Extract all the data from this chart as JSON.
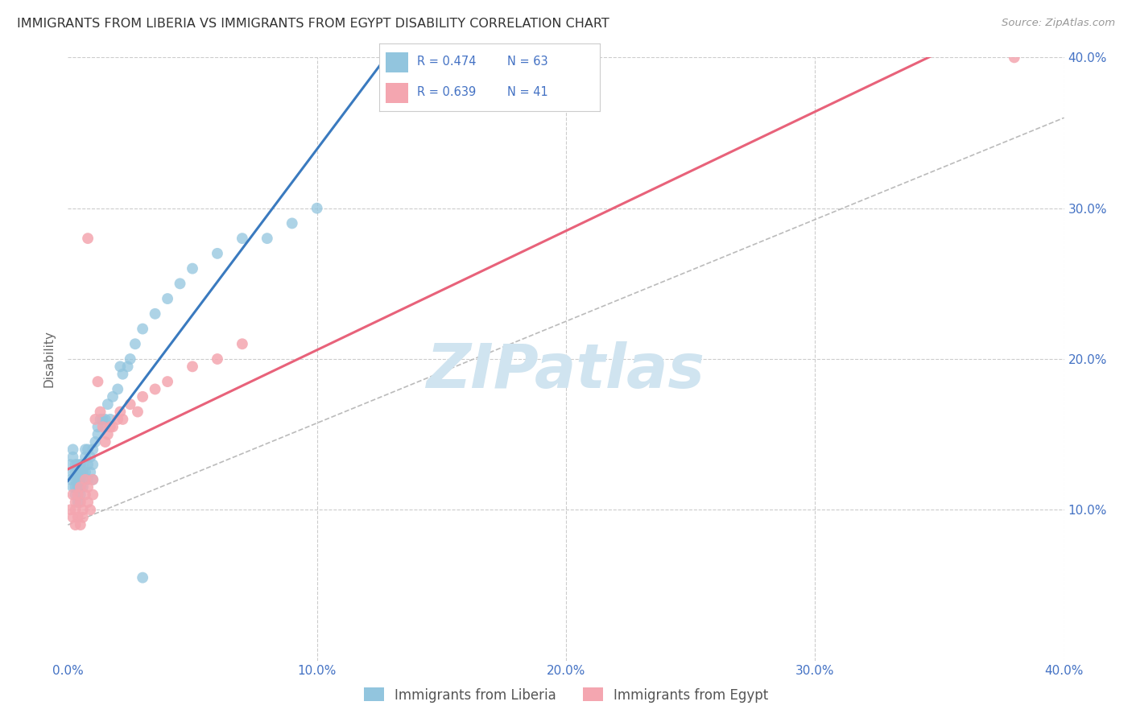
{
  "title": "IMMIGRANTS FROM LIBERIA VS IMMIGRANTS FROM EGYPT DISABILITY CORRELATION CHART",
  "source": "Source: ZipAtlas.com",
  "ylabel": "Disability",
  "xlim": [
    0.0,
    0.4
  ],
  "ylim": [
    0.0,
    0.4
  ],
  "xticks": [
    0.0,
    0.1,
    0.2,
    0.3,
    0.4
  ],
  "yticks": [
    0.1,
    0.2,
    0.3,
    0.4
  ],
  "xticklabels": [
    "0.0%",
    "10.0%",
    "20.0%",
    "30.0%",
    "40.0%"
  ],
  "right_yticklabels": [
    "10.0%",
    "20.0%",
    "30.0%",
    "40.0%"
  ],
  "liberia_R": 0.474,
  "liberia_N": 63,
  "egypt_R": 0.639,
  "egypt_N": 41,
  "liberia_color": "#92c5de",
  "egypt_color": "#f4a6b0",
  "liberia_line_color": "#3a7abf",
  "egypt_line_color": "#e8627a",
  "trendline_dashed_color": "#bbbbbb",
  "watermark_color": "#d0e4f0",
  "background_color": "#ffffff",
  "grid_color": "#cccccc",
  "title_color": "#333333",
  "axis_color": "#4472c4",
  "liberia_x": [
    0.001,
    0.001,
    0.002,
    0.002,
    0.002,
    0.002,
    0.003,
    0.003,
    0.003,
    0.003,
    0.003,
    0.004,
    0.004,
    0.004,
    0.004,
    0.004,
    0.005,
    0.005,
    0.005,
    0.005,
    0.005,
    0.006,
    0.006,
    0.006,
    0.006,
    0.007,
    0.007,
    0.007,
    0.008,
    0.008,
    0.008,
    0.009,
    0.009,
    0.01,
    0.01,
    0.01,
    0.011,
    0.012,
    0.012,
    0.013,
    0.014,
    0.015,
    0.015,
    0.016,
    0.017,
    0.018,
    0.02,
    0.021,
    0.022,
    0.024,
    0.025,
    0.027,
    0.03,
    0.035,
    0.04,
    0.045,
    0.05,
    0.06,
    0.07,
    0.08,
    0.09,
    0.1,
    0.03
  ],
  "liberia_y": [
    0.13,
    0.12,
    0.125,
    0.115,
    0.14,
    0.135,
    0.11,
    0.12,
    0.125,
    0.13,
    0.115,
    0.105,
    0.12,
    0.13,
    0.125,
    0.115,
    0.11,
    0.125,
    0.13,
    0.12,
    0.115,
    0.125,
    0.13,
    0.12,
    0.115,
    0.14,
    0.135,
    0.125,
    0.13,
    0.14,
    0.12,
    0.135,
    0.125,
    0.14,
    0.13,
    0.12,
    0.145,
    0.155,
    0.15,
    0.16,
    0.16,
    0.155,
    0.16,
    0.17,
    0.16,
    0.175,
    0.18,
    0.195,
    0.19,
    0.195,
    0.2,
    0.21,
    0.22,
    0.23,
    0.24,
    0.25,
    0.26,
    0.27,
    0.28,
    0.28,
    0.29,
    0.3,
    0.055
  ],
  "egypt_x": [
    0.001,
    0.002,
    0.002,
    0.003,
    0.003,
    0.003,
    0.004,
    0.004,
    0.005,
    0.005,
    0.005,
    0.006,
    0.006,
    0.007,
    0.007,
    0.008,
    0.008,
    0.009,
    0.01,
    0.01,
    0.011,
    0.012,
    0.013,
    0.014,
    0.015,
    0.016,
    0.017,
    0.018,
    0.02,
    0.021,
    0.022,
    0.025,
    0.028,
    0.03,
    0.035,
    0.04,
    0.05,
    0.06,
    0.07,
    0.38,
    0.008
  ],
  "egypt_y": [
    0.1,
    0.095,
    0.11,
    0.09,
    0.105,
    0.1,
    0.095,
    0.11,
    0.09,
    0.105,
    0.115,
    0.1,
    0.095,
    0.11,
    0.12,
    0.105,
    0.115,
    0.1,
    0.11,
    0.12,
    0.16,
    0.185,
    0.165,
    0.155,
    0.145,
    0.15,
    0.155,
    0.155,
    0.16,
    0.165,
    0.16,
    0.17,
    0.165,
    0.175,
    0.18,
    0.185,
    0.195,
    0.2,
    0.21,
    0.4,
    0.28
  ]
}
